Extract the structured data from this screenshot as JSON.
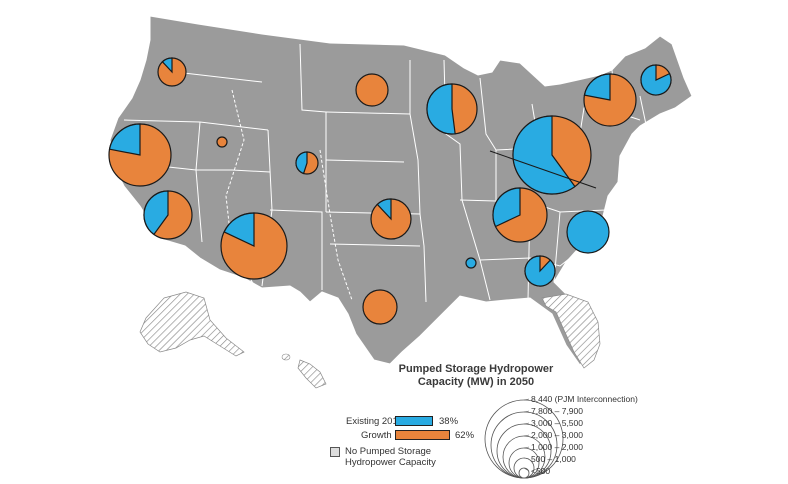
{
  "legend": {
    "title_line1": "Pumped Storage Hydropower",
    "title_line2": "Capacity (MW) in 2050",
    "existing_label": "Existing 2015",
    "existing_pct": "38%",
    "existing_color": "#29ABE2",
    "growth_label": "Growth",
    "growth_pct": "62%",
    "growth_color": "#E8843C",
    "none_line1": "No Pumped Storage",
    "none_line2": "Hydropower Capacity",
    "size_labels": [
      "8,440 (PJM Interconnection)",
      "7,800 – 7,900",
      "3,000 – 5,500",
      "2,000 – 3,000",
      "1,000 – 2,000",
      "500 – 1,000",
      "<500"
    ]
  },
  "colors": {
    "land": "#9B9B9B",
    "border": "#ffffff",
    "existing": "#29ABE2",
    "growth": "#E8843C"
  },
  "pies": [
    {
      "region": "Washington",
      "existing_share": 0.12
    },
    {
      "region": "Montana",
      "existing_share": 0.0
    },
    {
      "region": "Northern California",
      "existing_share": 0.22
    },
    {
      "region": "Nevada",
      "existing_share": 0.0
    },
    {
      "region": "Colorado",
      "existing_share": 0.45
    },
    {
      "region": "Southern California",
      "existing_share": 0.4
    },
    {
      "region": "Arizona",
      "existing_share": 0.18
    },
    {
      "region": "Kansas",
      "existing_share": 0.12
    },
    {
      "region": "Texas",
      "existing_share": 0.0
    },
    {
      "region": "Great Lakes",
      "existing_share": 0.52
    },
    {
      "region": "PJM Interconnection",
      "existing_share": 0.6
    },
    {
      "region": "New York",
      "existing_share": 0.22
    },
    {
      "region": "New England",
      "existing_share": 0.82
    },
    {
      "region": "Tennessee Valley",
      "existing_share": 0.32
    },
    {
      "region": "Carolinas",
      "existing_share": 1.0
    },
    {
      "region": "Georgia",
      "existing_share": 0.88
    },
    {
      "region": "Mississippi",
      "existing_share": 1.0
    }
  ]
}
